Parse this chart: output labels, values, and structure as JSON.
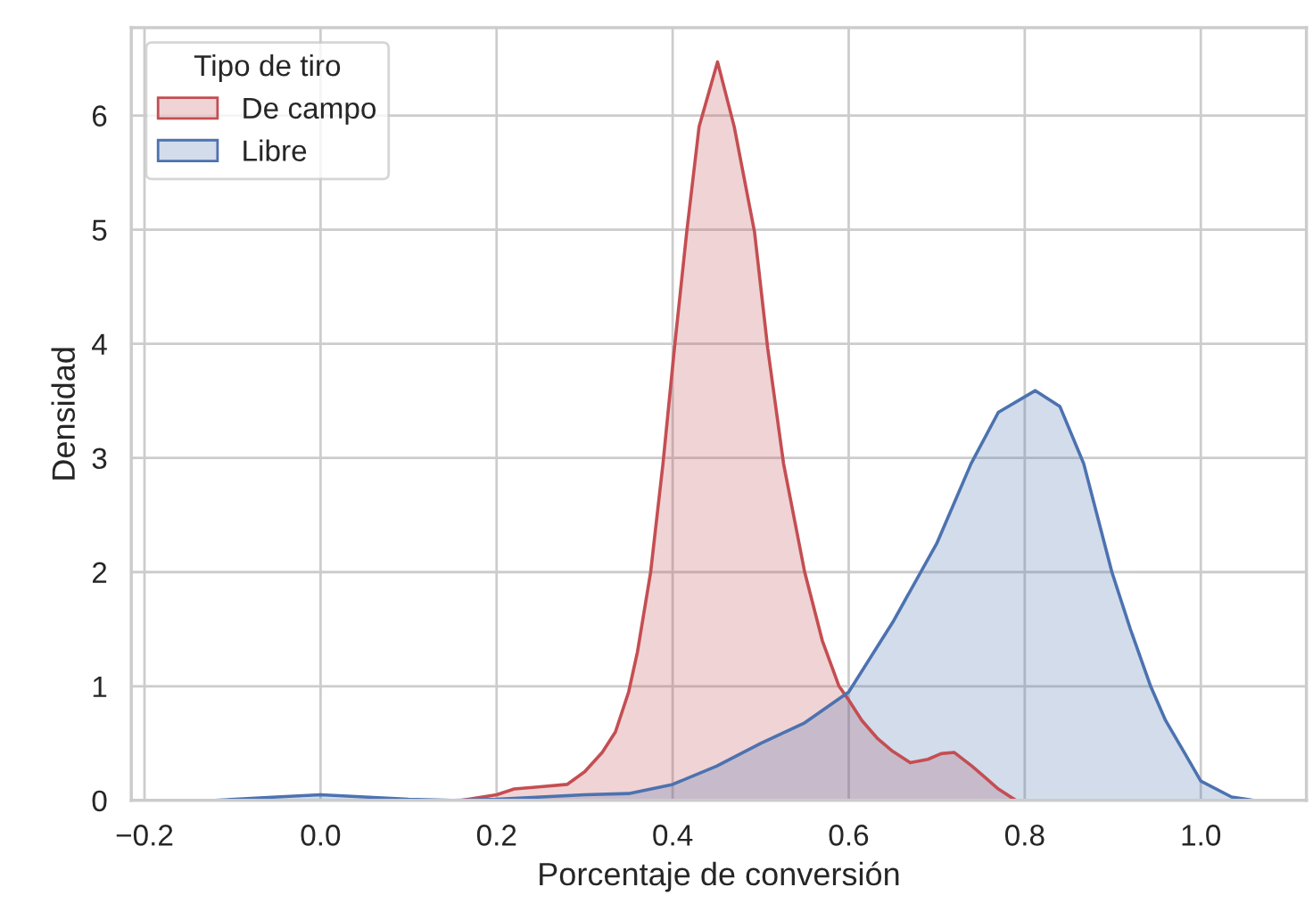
{
  "chart_data": {
    "type": "area",
    "xlabel": "Porcentaje de conversión",
    "ylabel": "Densidad",
    "legend_title": "Tipo de tiro",
    "legend": "top left",
    "grid": true,
    "xlim": [
      -0.215,
      1.12
    ],
    "ylim": [
      0,
      6.77
    ],
    "xticks": [
      {
        "value": -0.2,
        "label": "−0.2"
      },
      {
        "value": 0.0,
        "label": "0.0"
      },
      {
        "value": 0.2,
        "label": "0.2"
      },
      {
        "value": 0.4,
        "label": "0.4"
      },
      {
        "value": 0.6,
        "label": "0.6"
      },
      {
        "value": 0.8,
        "label": "0.8"
      },
      {
        "value": 1.0,
        "label": "1.0"
      }
    ],
    "yticks": [
      0,
      1,
      2,
      3,
      4,
      5,
      6
    ],
    "series": [
      {
        "name": "De campo",
        "color": "#c44e52",
        "x": [
          0.16,
          0.2,
          0.22,
          0.25,
          0.28,
          0.3,
          0.32,
          0.335,
          0.35,
          0.36,
          0.375,
          0.389,
          0.402,
          0.416,
          0.43,
          0.451,
          0.47,
          0.493,
          0.508,
          0.526,
          0.55,
          0.57,
          0.589,
          0.6,
          0.615,
          0.633,
          0.65,
          0.67,
          0.69,
          0.705,
          0.72,
          0.74,
          0.755,
          0.77,
          0.79
        ],
        "values": [
          0,
          0.05,
          0.1,
          0.12,
          0.14,
          0.25,
          0.42,
          0.6,
          0.95,
          1.3,
          2.0,
          2.95,
          3.96,
          4.98,
          5.9,
          6.47,
          5.9,
          4.98,
          3.96,
          2.95,
          2.0,
          1.4,
          1.0,
          0.88,
          0.7,
          0.54,
          0.43,
          0.33,
          0.36,
          0.41,
          0.42,
          0.3,
          0.2,
          0.1,
          0
        ]
      },
      {
        "name": "Libre",
        "color": "#4c72b0",
        "x": [
          -0.12,
          -0.05,
          0.0,
          0.05,
          0.1,
          0.15,
          0.2,
          0.3,
          0.35,
          0.4,
          0.45,
          0.5,
          0.55,
          0.6,
          0.65,
          0.7,
          0.739,
          0.77,
          0.812,
          0.84,
          0.867,
          0.899,
          0.92,
          0.943,
          0.96,
          0.982,
          1.0,
          1.035,
          1.06
        ],
        "values": [
          0,
          0.03,
          0.05,
          0.03,
          0.01,
          0.0,
          0.01,
          0.05,
          0.06,
          0.14,
          0.3,
          0.5,
          0.68,
          0.95,
          1.56,
          2.25,
          2.95,
          3.4,
          3.59,
          3.45,
          2.95,
          2.0,
          1.5,
          1.0,
          0.7,
          0.41,
          0.17,
          0.03,
          0
        ]
      }
    ]
  }
}
